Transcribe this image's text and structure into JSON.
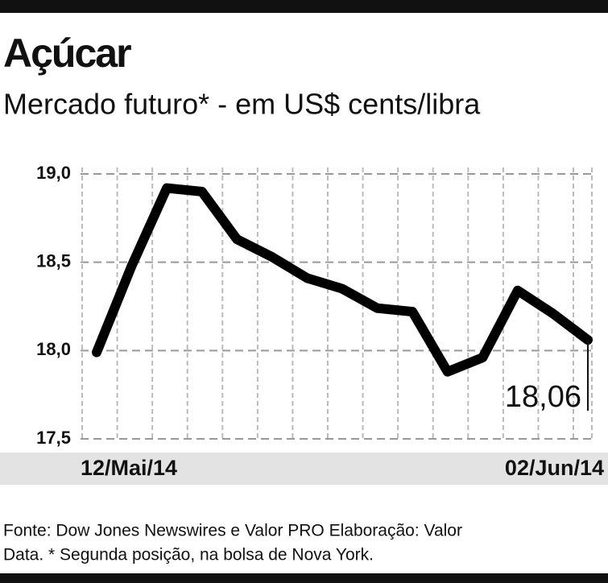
{
  "chart_data": {
    "type": "line",
    "title": "Açúcar",
    "subtitle": "Mercado futuro* - em US$ cents/libra",
    "categories": [
      "12/Mai/14",
      null,
      null,
      null,
      null,
      null,
      null,
      null,
      null,
      null,
      null,
      null,
      null,
      null,
      "02/Jun/14"
    ],
    "values": [
      17.99,
      18.48,
      18.92,
      18.9,
      18.63,
      18.53,
      18.41,
      18.35,
      18.24,
      18.22,
      17.88,
      17.96,
      18.34,
      18.21,
      18.06
    ],
    "value_labels": [
      null,
      null,
      null,
      null,
      null,
      null,
      null,
      null,
      null,
      null,
      null,
      null,
      null,
      null,
      "18,06"
    ],
    "color": "#000000",
    "ylim": [
      17.5,
      19.0
    ],
    "yticks": [
      {
        "value": 17.5,
        "label": "17,5"
      },
      {
        "value": 18.0,
        "label": "18,0"
      },
      {
        "value": 18.5,
        "label": "18,5"
      },
      {
        "value": 19.0,
        "label": "19,0"
      }
    ],
    "grid": true,
    "source": [
      "Fonte: Dow Jones Newswires e Valor PRO Elaboração: Valor",
      "Data. * Segunda posição, na bolsa de Nova York."
    ]
  }
}
